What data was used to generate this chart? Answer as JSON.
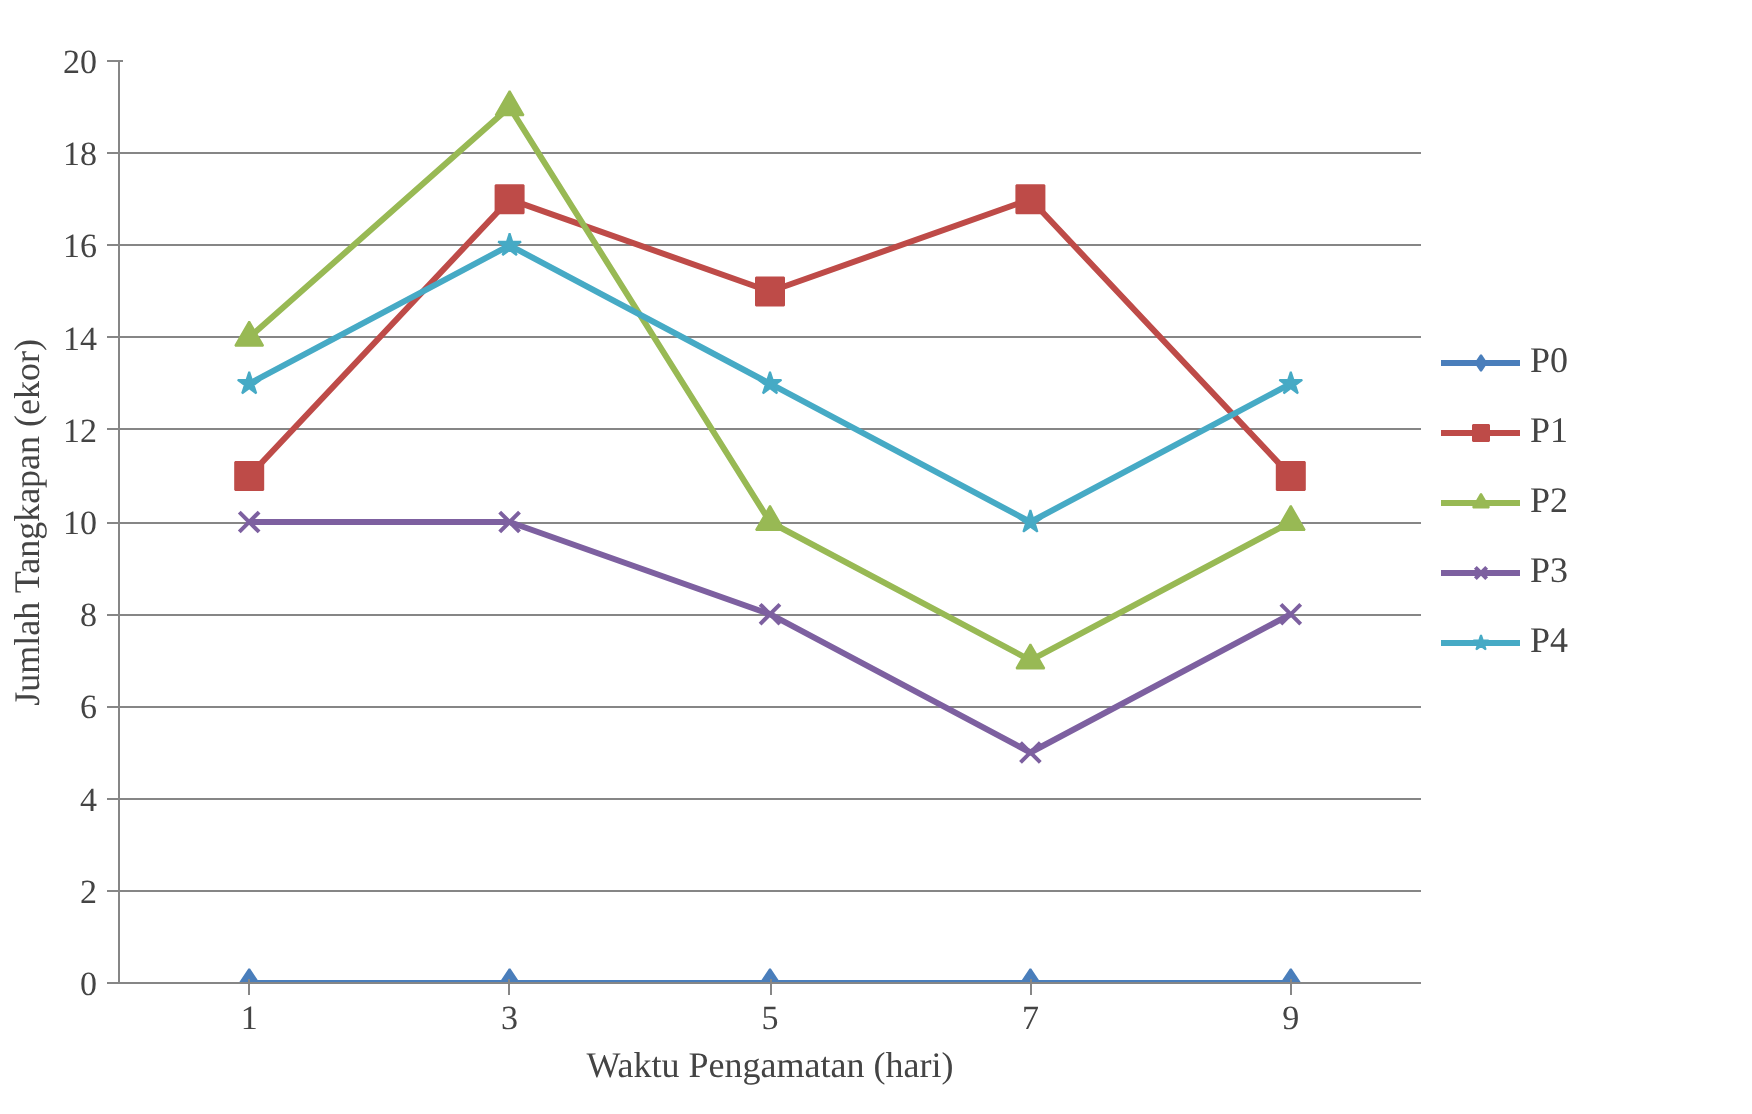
{
  "chart_data": {
    "type": "line",
    "xlabel": "Waktu Pengamatan (hari)",
    "ylabel": "Jumlah Tangkapan (ekor)",
    "categories": [
      "1",
      "3",
      "5",
      "7",
      "9"
    ],
    "ylim": [
      0,
      20
    ],
    "yticks": [
      0,
      2,
      4,
      6,
      8,
      10,
      12,
      14,
      16,
      18,
      20
    ],
    "grid": "y",
    "legend": "right",
    "line_style": "solid",
    "series": [
      {
        "name": "P0",
        "color": "#4a7ebb",
        "marker": "diamond",
        "values": [
          0,
          0,
          0,
          0,
          0
        ]
      },
      {
        "name": "P1",
        "color": "#be4b48",
        "marker": "square",
        "values": [
          11,
          17,
          15,
          17,
          11
        ]
      },
      {
        "name": "P2",
        "color": "#98b954",
        "marker": "triangle",
        "values": [
          14,
          19,
          10,
          7,
          10
        ]
      },
      {
        "name": "P3",
        "color": "#7d60a0",
        "marker": "cross",
        "values": [
          10,
          10,
          8,
          5,
          8
        ]
      },
      {
        "name": "P4",
        "color": "#46aac5",
        "marker": "star",
        "values": [
          13,
          16,
          13,
          10,
          13
        ]
      }
    ]
  }
}
